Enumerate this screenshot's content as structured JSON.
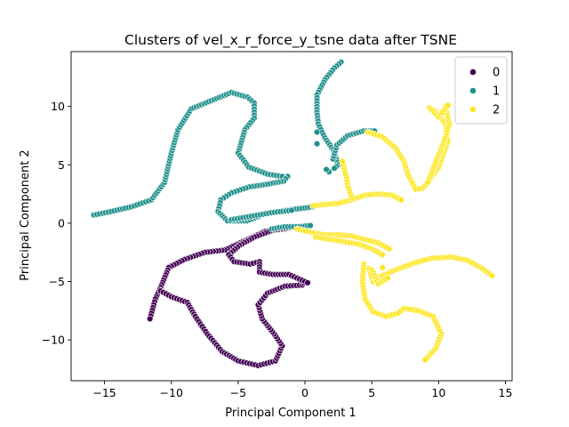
{
  "chart_data": {
    "type": "scatter",
    "title": "Clusters of vel_x_r_force_y_tsne data after TSNE",
    "xlabel": "Principal Component 1",
    "ylabel": "Principal Component 2",
    "xlim": [
      -17.5,
      15.5
    ],
    "ylim": [
      -13.5,
      14.7
    ],
    "xticks": [
      -15,
      -10,
      -5,
      0,
      5,
      10,
      15
    ],
    "yticks": [
      -10,
      -5,
      0,
      5,
      10
    ],
    "xtick_labels": [
      "−15",
      "−10",
      "−5",
      "0",
      "5",
      "10",
      "15"
    ],
    "ytick_labels": [
      "−10",
      "−5",
      "0",
      "5",
      "10"
    ],
    "legend_position": "top-right",
    "grid": false,
    "series": [
      {
        "name": "0",
        "color": "#440154",
        "paths": [
          [
            [
              -1.5,
              -0.5
            ],
            [
              -3,
              -0.7
            ],
            [
              -4.5,
              -1.5
            ],
            [
              -6,
              -2.3
            ],
            [
              -7.5,
              -2.5
            ],
            [
              -9,
              -3.1
            ],
            [
              -10.2,
              -3.8
            ],
            [
              -10.8,
              -5.5
            ],
            [
              -11.2,
              -6.5
            ],
            [
              -11.6,
              -8.2
            ]
          ],
          [
            [
              -10.8,
              -5.8
            ],
            [
              -10,
              -6.3
            ],
            [
              -8.8,
              -6.8
            ],
            [
              -8.2,
              -8
            ],
            [
              -7.3,
              -9.5
            ],
            [
              -6.2,
              -11
            ],
            [
              -5,
              -11.8
            ],
            [
              -3.5,
              -12.2
            ],
            [
              -2.2,
              -11.8
            ],
            [
              -1.7,
              -10.5
            ],
            [
              -2.3,
              -9.5
            ],
            [
              -3.2,
              -8.2
            ],
            [
              -3.5,
              -7
            ],
            [
              -2.8,
              -6
            ],
            [
              -1.5,
              -5.4
            ],
            [
              -0.2,
              -5.3
            ],
            [
              0,
              -5
            ]
          ],
          [
            [
              -0.8,
              -0.3
            ],
            [
              -2.4,
              -0.6
            ],
            [
              -3.8,
              -1.2
            ],
            [
              -4.9,
              -1.9
            ],
            [
              -5.7,
              -2.7
            ],
            [
              -5.3,
              -3.3
            ],
            [
              -4.1,
              -3.5
            ],
            [
              -3.4,
              -3.3
            ],
            [
              -3.4,
              -4.2
            ],
            [
              -2.4,
              -4.4
            ],
            [
              -1.2,
              -4.4
            ],
            [
              -0.4,
              -4.8
            ],
            [
              0.2,
              -5.1
            ]
          ]
        ]
      },
      {
        "name": "1",
        "color": "#21918c",
        "paths": [
          [
            [
              -15.8,
              0.7
            ],
            [
              -14.5,
              1
            ],
            [
              -13,
              1.4
            ],
            [
              -11.5,
              2
            ],
            [
              -10.5,
              3.5
            ],
            [
              -10,
              6
            ],
            [
              -9.5,
              8
            ],
            [
              -8.5,
              9.8
            ],
            [
              -7,
              10.5
            ],
            [
              -5.5,
              11.2
            ],
            [
              -4.3,
              10.8
            ],
            [
              -3.8,
              10.3
            ],
            [
              -3.8,
              9
            ],
            [
              -4.5,
              8
            ],
            [
              -5,
              6
            ],
            [
              -4.2,
              4.8
            ],
            [
              -2.8,
              4.2
            ],
            [
              -1.7,
              4
            ]
          ],
          [
            [
              -1.3,
              4
            ],
            [
              -1.6,
              3.6
            ],
            [
              -3,
              3.3
            ],
            [
              -4.2,
              3.1
            ],
            [
              -5.5,
              2.6
            ],
            [
              -6.3,
              2
            ],
            [
              -6.5,
              1
            ],
            [
              -5.8,
              0.2
            ],
            [
              -4.3,
              0.2
            ],
            [
              -3,
              0.8
            ],
            [
              -1.5,
              1.1
            ],
            [
              0,
              1.3
            ],
            [
              0.6,
              1.4
            ]
          ],
          [
            [
              -5.5,
              0.3
            ],
            [
              -4,
              0.6
            ],
            [
              -2.5,
              0.9
            ],
            [
              -1,
              1.1
            ]
          ],
          [
            [
              2.7,
              13.8
            ],
            [
              2.2,
              13.3
            ],
            [
              1.5,
              12.3
            ],
            [
              0.9,
              11
            ],
            [
              0.9,
              9.5
            ],
            [
              1,
              8.5
            ],
            [
              1.5,
              7.3
            ],
            [
              2.1,
              6.3
            ],
            [
              2.5,
              5
            ],
            [
              2.2,
              4.7
            ]
          ],
          [
            [
              2.1,
              5.5
            ],
            [
              2.4,
              6.7
            ],
            [
              3.2,
              7.5
            ],
            [
              4.4,
              7.9
            ],
            [
              5.2,
              7.9
            ]
          ],
          [
            [
              -2.5,
              -0.5
            ],
            [
              -1.5,
              -0.3
            ],
            [
              -0.4,
              -0.3
            ],
            [
              0.4,
              -0.2
            ]
          ]
        ],
        "points": [
          [
            0.9,
            7.8
          ],
          [
            0.9,
            6.8
          ],
          [
            1.8,
            4.4
          ],
          [
            1.6,
            4.6
          ]
        ]
      },
      {
        "name": "2",
        "color": "#fde725",
        "paths": [
          [
            [
              0.6,
              1.5
            ],
            [
              1.5,
              1.6
            ],
            [
              2.5,
              1.7
            ],
            [
              3.5,
              2
            ],
            [
              4.5,
              2.4
            ],
            [
              5.5,
              2.5
            ],
            [
              6.5,
              2.4
            ],
            [
              7.2,
              2
            ]
          ],
          [
            [
              3.5,
              2.2
            ],
            [
              3.2,
              3.2
            ],
            [
              3.1,
              4
            ],
            [
              2.9,
              4.8
            ],
            [
              2.8,
              5.3
            ]
          ],
          [
            [
              -0.6,
              -0.5
            ],
            [
              0.5,
              -0.8
            ],
            [
              1.5,
              -1
            ],
            [
              2.5,
              -1
            ],
            [
              3.5,
              -1.1
            ],
            [
              4.5,
              -1.4
            ],
            [
              5.5,
              -1.7
            ],
            [
              6.3,
              -2.2
            ]
          ],
          [
            [
              0.8,
              -1.2
            ],
            [
              2.5,
              -1.5
            ],
            [
              4,
              -1.8
            ],
            [
              5,
              -2.2
            ],
            [
              5.8,
              -2.7
            ]
          ],
          [
            [
              4.7,
              7.8
            ],
            [
              5.8,
              7.4
            ],
            [
              6.8,
              6.4
            ],
            [
              7.4,
              5.3
            ],
            [
              7.7,
              4.2
            ],
            [
              8.3,
              2.9
            ],
            [
              8.8,
              3
            ],
            [
              9.2,
              3.5
            ],
            [
              10,
              4.8
            ],
            [
              10.7,
              7
            ],
            [
              10.5,
              8.5
            ],
            [
              9.8,
              9.6
            ],
            [
              9.3,
              9.9
            ]
          ],
          [
            [
              10.5,
              10
            ],
            [
              10.8,
              8.5
            ],
            [
              10.4,
              7
            ],
            [
              9.8,
              5.3
            ],
            [
              9.2,
              3.5
            ]
          ],
          [
            [
              9.4,
              9.8
            ],
            [
              10,
              9.1
            ],
            [
              10.7,
              10.1
            ]
          ],
          [
            [
              4.4,
              -3.5
            ],
            [
              4.3,
              -5
            ],
            [
              4.5,
              -6.5
            ],
            [
              5.1,
              -7.6
            ],
            [
              6.1,
              -8
            ],
            [
              7,
              -7.7
            ],
            [
              7.4,
              -7.3
            ],
            [
              8.5,
              -7.5
            ],
            [
              9.6,
              -8
            ],
            [
              10.2,
              -9.5
            ],
            [
              9.8,
              -10.7
            ],
            [
              9,
              -11.7
            ]
          ],
          [
            [
              4.8,
              -3.9
            ],
            [
              5.1,
              -5
            ],
            [
              5.6,
              -4.6
            ],
            [
              6.8,
              -4
            ],
            [
              8.2,
              -3.4
            ],
            [
              9.5,
              -3
            ],
            [
              11,
              -2.9
            ],
            [
              12.2,
              -3.2
            ],
            [
              13.3,
              -3.9
            ],
            [
              14,
              -4.5
            ]
          ],
          [
            [
              5,
              -4
            ],
            [
              5.5,
              -5.2
            ],
            [
              6.2,
              -4.7
            ]
          ]
        ],
        "points": [
          [
            5.8,
            -3.8
          ]
        ]
      }
    ]
  }
}
